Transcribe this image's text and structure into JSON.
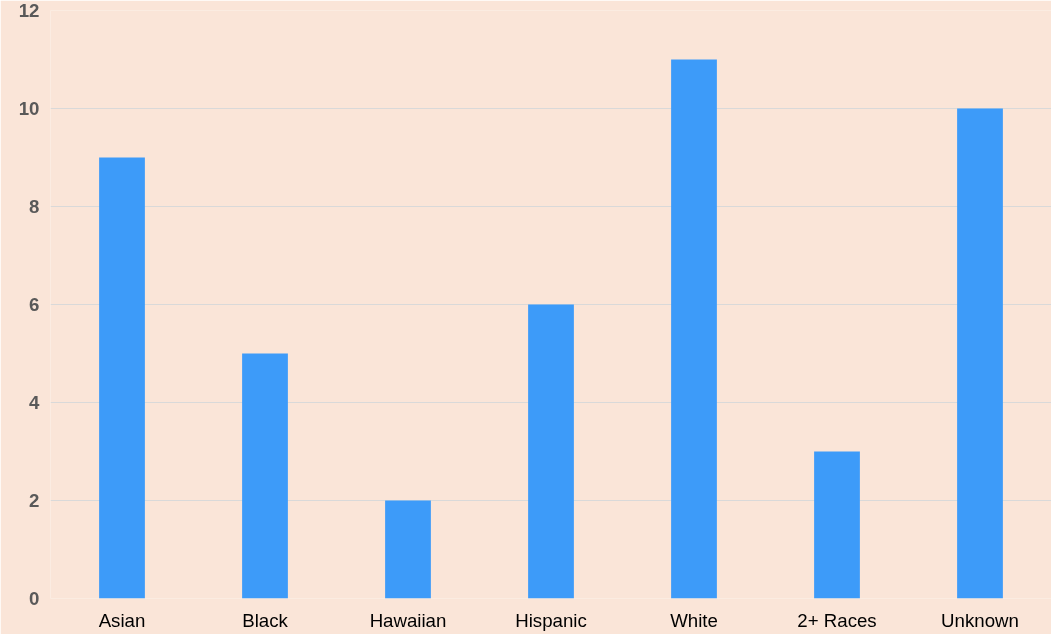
{
  "chart_data": {
    "type": "bar",
    "categories": [
      "Asian",
      "Black",
      "Hawaiian",
      "Hispanic",
      "White",
      "2+ Races",
      "Unknown"
    ],
    "values": [
      9,
      5,
      2,
      6,
      11,
      3,
      10
    ],
    "color": "#3d9bf9",
    "ylim": [
      0,
      12
    ],
    "yticks": [
      0,
      2,
      4,
      6,
      8,
      10,
      12
    ],
    "grid": "y"
  }
}
